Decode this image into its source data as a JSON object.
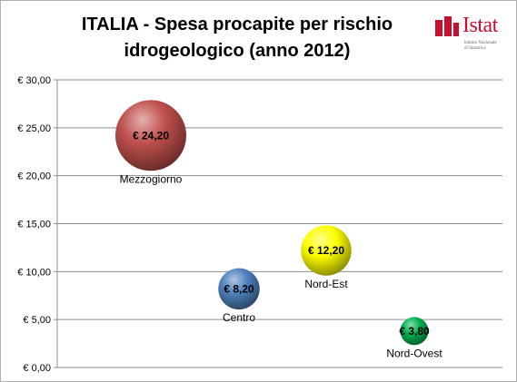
{
  "chart_data": {
    "type": "bubble",
    "title": "ITALIA - Spesa procapite per rischio idrogeologico (anno 2012)",
    "ylim": [
      0,
      30
    ],
    "yticks": [
      0,
      5,
      10,
      15,
      20,
      25,
      30
    ],
    "ytick_labels": [
      "€ 0,00",
      "€ 5,00",
      "€ 10,00",
      "€ 15,00",
      "€ 20,00",
      "€ 25,00",
      "€ 30,00"
    ],
    "grid": true,
    "points": [
      {
        "name": "Mezzogiorno",
        "value": 24.2,
        "label": "€ 24,20",
        "color": "#c0504d"
      },
      {
        "name": "Centro",
        "value": 8.2,
        "label": "€ 8,20",
        "color": "#4f81bd"
      },
      {
        "name": "Nord-Est",
        "value": 12.2,
        "label": "€ 12,20",
        "color": "#ffff00"
      },
      {
        "name": "Nord-Ovest",
        "value": 3.8,
        "label": "€ 3,80",
        "color": "#00b050"
      }
    ]
  },
  "header": {
    "title": "ITALIA - Spesa procapite per rischio idrogeologico (anno 2012)"
  },
  "logo": {
    "name": "Istat",
    "sub1": "Istituto Nazionale",
    "sub2": "di Statistica"
  }
}
